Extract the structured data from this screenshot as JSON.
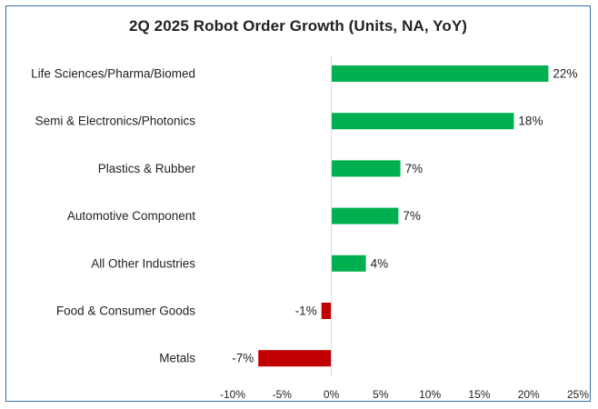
{
  "chart_data": {
    "type": "bar",
    "orientation": "horizontal",
    "title": "2Q 2025 Robot Order Growth (Units, NA, YoY)",
    "categories": [
      "Life Sciences/Pharma/Biomed",
      "Semi & Electronics/Photonics",
      "Plastics & Rubber",
      "Automotive Component",
      "All Other Industries",
      "Food & Consumer Goods",
      "Metals"
    ],
    "values": [
      22,
      18.5,
      7,
      6.8,
      3.5,
      -1,
      -7.4
    ],
    "data_labels": [
      "22%",
      "18%",
      "7%",
      "7%",
      "4%",
      "-1%",
      "-7%"
    ],
    "xlim": [
      -10,
      25
    ],
    "xticks": [
      -10,
      -5,
      0,
      5,
      10,
      15,
      20,
      25
    ],
    "xtick_labels": [
      "-10%",
      "-5%",
      "0%",
      "5%",
      "10%",
      "15%",
      "20%",
      "25%"
    ],
    "xlabel": "",
    "ylabel": "",
    "grid": false,
    "colors": {
      "positive": "#00b050",
      "negative": "#c00000",
      "frame": "#3a6ea5"
    }
  }
}
